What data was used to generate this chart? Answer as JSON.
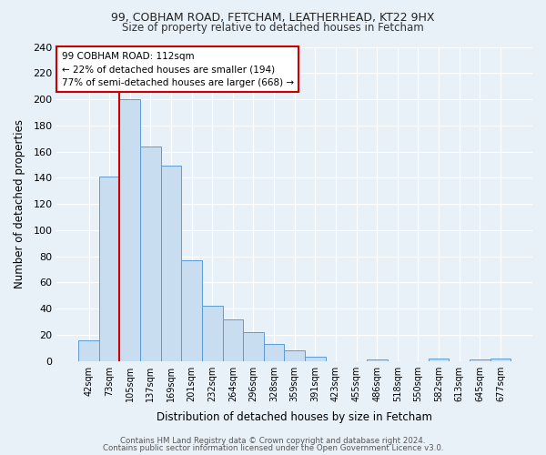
{
  "title1": "99, COBHAM ROAD, FETCHAM, LEATHERHEAD, KT22 9HX",
  "title2": "Size of property relative to detached houses in Fetcham",
  "xlabel": "Distribution of detached houses by size in Fetcham",
  "ylabel": "Number of detached properties",
  "bar_labels": [
    "42sqm",
    "73sqm",
    "105sqm",
    "137sqm",
    "169sqm",
    "201sqm",
    "232sqm",
    "264sqm",
    "296sqm",
    "328sqm",
    "359sqm",
    "391sqm",
    "423sqm",
    "455sqm",
    "486sqm",
    "518sqm",
    "550sqm",
    "582sqm",
    "613sqm",
    "645sqm",
    "677sqm"
  ],
  "bar_heights": [
    16,
    141,
    200,
    164,
    149,
    77,
    42,
    32,
    22,
    13,
    8,
    3,
    0,
    0,
    1,
    0,
    0,
    2,
    0,
    1,
    2
  ],
  "bar_color": "#c8ddf0",
  "bar_edge_color": "#5b9bd5",
  "vline_color": "#cc0000",
  "annotation_title": "99 COBHAM ROAD: 112sqm",
  "annotation_line1": "← 22% of detached houses are smaller (194)",
  "annotation_line2": "77% of semi-detached houses are larger (668) →",
  "annotation_box_facecolor": "#ffffff",
  "annotation_box_edgecolor": "#cc0000",
  "ylim": [
    0,
    240
  ],
  "yticks": [
    0,
    20,
    40,
    60,
    80,
    100,
    120,
    140,
    160,
    180,
    200,
    220,
    240
  ],
  "footer1": "Contains HM Land Registry data © Crown copyright and database right 2024.",
  "footer2": "Contains public sector information licensed under the Open Government Licence v3.0.",
  "bg_color": "#e8f0f8",
  "plot_bg_color": "#e8f0f8"
}
